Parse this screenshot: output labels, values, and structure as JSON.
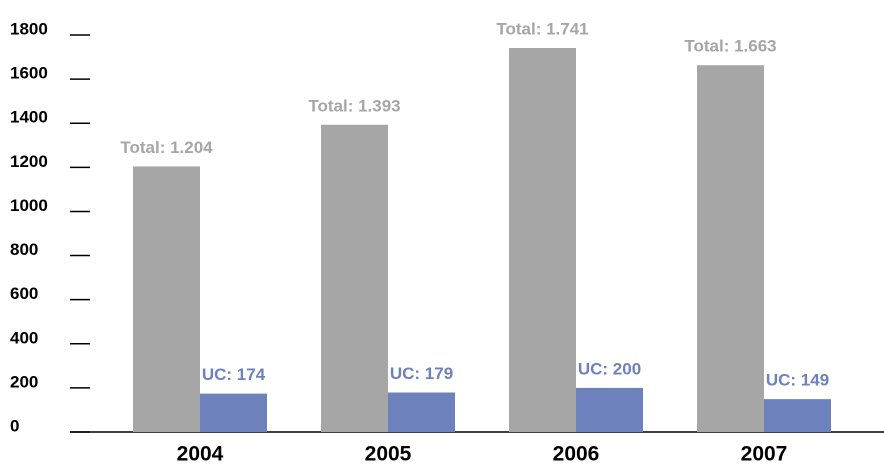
{
  "chart_data": {
    "type": "bar",
    "categories": [
      "2004",
      "2005",
      "2006",
      "2007"
    ],
    "series": [
      {
        "color": "#a6a6a6",
        "values": [
          1204,
          1393,
          1741,
          1663
        ],
        "value_labels": [
          "Total: 1.204",
          "Total: 1.393",
          "Total: 1.741",
          "Total: 1.663"
        ]
      },
      {
        "color": "#6d82bd",
        "values": [
          174,
          179,
          200,
          149
        ],
        "value_labels": [
          "UC: 174",
          "UC: 179",
          "UC: 200",
          "UC: 149"
        ]
      }
    ],
    "ylim": [
      0,
      1800
    ],
    "yticks": [
      0,
      200,
      400,
      600,
      800,
      1000,
      1200,
      1400,
      1600,
      1800
    ]
  }
}
